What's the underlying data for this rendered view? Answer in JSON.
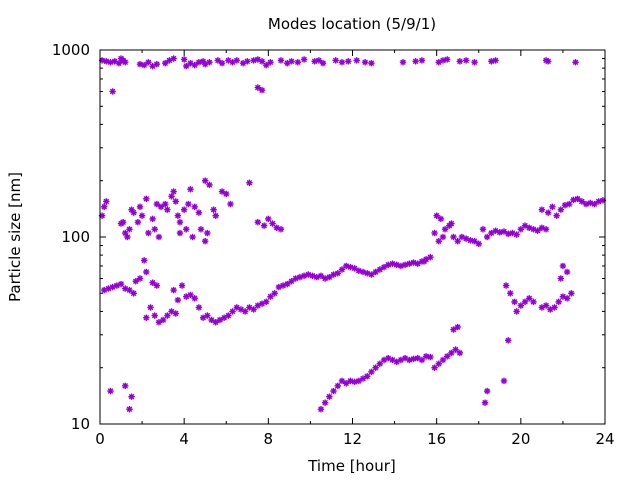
{
  "chart_data": {
    "type": "scatter",
    "title": "Modes location (5/9/1)",
    "xlabel": "Time [hour]",
    "ylabel": "Particle size [nm]",
    "xlim": [
      0,
      24
    ],
    "ylim": [
      10,
      1000
    ],
    "yscale": "log",
    "grid": false,
    "legend": "none",
    "x_ticks": [
      0,
      4,
      8,
      12,
      16,
      20,
      24
    ],
    "x_tick_labels": [
      "0",
      "4",
      "8",
      "12",
      "16",
      "20",
      "24"
    ],
    "y_ticks": [
      10,
      100,
      1000
    ],
    "y_tick_labels": [
      "10",
      "100",
      "1000"
    ],
    "marker_color": "#9400d3",
    "series": [
      {
        "values": [
          [
            0.1,
            880
          ],
          [
            0.3,
            870
          ],
          [
            0.5,
            860
          ],
          [
            0.7,
            870
          ],
          [
            0.9,
            850
          ],
          [
            1.1,
            880
          ],
          [
            1.2,
            860
          ],
          [
            1.0,
            900
          ],
          [
            0.6,
            600
          ],
          [
            1.9,
            840
          ],
          [
            2.1,
            830
          ],
          [
            2.3,
            860
          ],
          [
            2.5,
            820
          ],
          [
            2.7,
            840
          ],
          [
            3.1,
            850
          ],
          [
            3.3,
            880
          ],
          [
            3.5,
            900
          ],
          [
            4.0,
            890
          ],
          [
            4.1,
            820
          ],
          [
            4.3,
            850
          ],
          [
            4.5,
            830
          ],
          [
            4.7,
            860
          ],
          [
            4.9,
            870
          ],
          [
            5.0,
            840
          ],
          [
            5.2,
            860
          ],
          [
            5.6,
            880
          ],
          [
            5.8,
            850
          ],
          [
            6.1,
            880
          ],
          [
            6.3,
            860
          ],
          [
            6.5,
            880
          ],
          [
            6.8,
            850
          ],
          [
            7.0,
            870
          ],
          [
            7.3,
            880
          ],
          [
            7.5,
            890
          ],
          [
            7.7,
            870
          ],
          [
            7.9,
            830
          ],
          [
            7.5,
            630
          ],
          [
            7.7,
            610
          ],
          [
            8.1,
            860
          ],
          [
            8.6,
            880
          ],
          [
            8.9,
            850
          ],
          [
            9.1,
            870
          ],
          [
            9.4,
            860
          ],
          [
            9.7,
            890
          ],
          [
            10.2,
            870
          ],
          [
            10.4,
            880
          ],
          [
            10.6,
            850
          ],
          [
            11.2,
            880
          ],
          [
            11.5,
            860
          ],
          [
            11.8,
            870
          ],
          [
            12.2,
            880
          ],
          [
            12.6,
            860
          ],
          [
            12.9,
            850
          ],
          [
            14.4,
            860
          ],
          [
            15.0,
            870
          ],
          [
            15.3,
            880
          ],
          [
            16.1,
            860
          ],
          [
            16.3,
            880
          ],
          [
            16.5,
            890
          ],
          [
            17.1,
            870
          ],
          [
            17.4,
            880
          ],
          [
            17.8,
            860
          ],
          [
            18.6,
            870
          ],
          [
            18.8,
            880
          ],
          [
            21.2,
            880
          ],
          [
            21.3,
            870
          ],
          [
            22.6,
            860
          ]
        ]
      },
      {
        "values": [
          [
            0.1,
            130
          ],
          [
            0.2,
            145
          ],
          [
            0.3,
            155
          ],
          [
            1.0,
            118
          ],
          [
            1.1,
            120
          ],
          [
            1.2,
            105
          ],
          [
            1.3,
            100
          ],
          [
            1.4,
            110
          ],
          [
            1.5,
            140
          ],
          [
            1.6,
            135
          ],
          [
            1.8,
            120
          ],
          [
            1.9,
            145
          ],
          [
            2.0,
            130
          ],
          [
            2.2,
            160
          ],
          [
            2.5,
            125
          ],
          [
            2.7,
            150
          ],
          [
            2.9,
            145
          ],
          [
            3.1,
            150
          ],
          [
            3.2,
            140
          ],
          [
            3.4,
            165
          ],
          [
            3.5,
            175
          ],
          [
            3.6,
            155
          ],
          [
            3.7,
            130
          ],
          [
            3.8,
            120
          ],
          [
            4.0,
            140
          ],
          [
            4.1,
            110
          ],
          [
            4.2,
            150
          ],
          [
            4.3,
            180
          ],
          [
            4.5,
            145
          ],
          [
            4.7,
            135
          ],
          [
            4.8,
            110
          ],
          [
            5.0,
            200
          ],
          [
            5.1,
            105
          ],
          [
            5.2,
            190
          ],
          [
            5.4,
            140
          ],
          [
            5.5,
            130
          ],
          [
            5.8,
            175
          ],
          [
            6.0,
            170
          ],
          [
            6.2,
            150
          ],
          [
            7.1,
            195
          ],
          [
            7.5,
            120
          ],
          [
            7.8,
            115
          ],
          [
            8.0,
            125
          ],
          [
            8.2,
            118
          ],
          [
            8.4,
            112
          ],
          [
            8.6,
            110
          ],
          [
            2.6,
            110
          ],
          [
            2.8,
            100
          ],
          [
            3.8,
            105
          ],
          [
            4.4,
            100
          ],
          [
            5.0,
            95
          ],
          [
            2.3,
            105
          ],
          [
            0.2,
            52
          ],
          [
            0.4,
            53
          ],
          [
            0.6,
            54
          ],
          [
            0.8,
            55
          ],
          [
            1.0,
            56
          ],
          [
            1.2,
            53
          ],
          [
            1.4,
            52
          ],
          [
            1.6,
            50
          ],
          [
            2.1,
            75
          ],
          [
            2.2,
            65
          ],
          [
            2.5,
            57
          ],
          [
            2.7,
            55
          ],
          [
            1.7,
            58
          ],
          [
            1.9,
            60
          ],
          [
            2.2,
            37
          ],
          [
            2.4,
            42
          ],
          [
            2.6,
            38
          ],
          [
            2.8,
            35
          ],
          [
            3.0,
            36
          ],
          [
            3.2,
            38
          ],
          [
            3.4,
            40
          ],
          [
            3.6,
            39
          ],
          [
            3.5,
            52
          ],
          [
            3.7,
            46
          ],
          [
            3.9,
            55
          ],
          [
            4.1,
            48
          ],
          [
            4.3,
            49
          ],
          [
            4.5,
            47
          ],
          [
            4.7,
            42
          ],
          [
            4.9,
            37
          ],
          [
            5.1,
            38
          ],
          [
            5.3,
            36
          ],
          [
            5.5,
            35
          ],
          [
            5.7,
            36
          ],
          [
            5.9,
            37
          ],
          [
            6.1,
            38
          ],
          [
            6.3,
            40
          ],
          [
            6.5,
            42
          ],
          [
            6.7,
            41
          ],
          [
            6.9,
            40
          ],
          [
            7.1,
            42
          ],
          [
            7.3,
            41
          ],
          [
            7.5,
            43
          ],
          [
            7.7,
            44
          ],
          [
            7.9,
            45
          ],
          [
            8.1,
            48
          ],
          [
            8.3,
            50
          ],
          [
            8.5,
            54
          ],
          [
            8.7,
            55
          ],
          [
            8.9,
            56
          ],
          [
            9.1,
            58
          ],
          [
            9.3,
            60
          ],
          [
            9.5,
            61
          ],
          [
            9.7,
            62
          ],
          [
            9.9,
            63
          ],
          [
            10.1,
            62
          ],
          [
            10.3,
            61
          ],
          [
            10.5,
            62
          ],
          [
            10.7,
            60
          ],
          [
            10.9,
            61
          ],
          [
            11.1,
            63
          ],
          [
            11.3,
            64
          ],
          [
            11.5,
            67
          ],
          [
            11.7,
            70
          ],
          [
            11.9,
            69
          ],
          [
            12.1,
            68
          ],
          [
            12.3,
            66
          ],
          [
            12.5,
            65
          ],
          [
            12.7,
            64
          ],
          [
            12.9,
            63
          ],
          [
            13.1,
            65
          ],
          [
            13.3,
            67
          ],
          [
            13.5,
            69
          ],
          [
            13.7,
            71
          ],
          [
            13.9,
            72
          ],
          [
            14.1,
            71
          ],
          [
            14.3,
            70
          ],
          [
            14.5,
            71
          ],
          [
            14.7,
            72
          ],
          [
            14.9,
            73
          ],
          [
            15.1,
            72
          ],
          [
            15.3,
            74
          ],
          [
            15.5,
            76
          ],
          [
            15.7,
            78
          ],
          [
            15.4,
            74
          ],
          [
            15.9,
            105
          ],
          [
            16.0,
            130
          ],
          [
            16.2,
            125
          ],
          [
            16.4,
            110
          ],
          [
            16.6,
            115
          ],
          [
            16.8,
            100
          ],
          [
            17.0,
            95
          ],
          [
            16.1,
            95
          ],
          [
            16.3,
            100
          ],
          [
            16.7,
            118
          ],
          [
            17.2,
            100
          ],
          [
            17.4,
            98
          ],
          [
            17.6,
            96
          ],
          [
            17.8,
            95
          ],
          [
            18.0,
            92
          ],
          [
            18.2,
            110
          ],
          [
            18.4,
            100
          ],
          [
            18.6,
            105
          ],
          [
            18.8,
            108
          ],
          [
            19.0,
            106
          ],
          [
            19.2,
            107
          ],
          [
            19.4,
            104
          ],
          [
            19.6,
            105
          ],
          [
            19.8,
            103
          ],
          [
            20.0,
            110
          ],
          [
            20.2,
            115
          ],
          [
            20.4,
            112
          ],
          [
            20.6,
            110
          ],
          [
            20.8,
            108
          ],
          [
            21.0,
            112
          ],
          [
            21.2,
            110
          ],
          [
            21.0,
            140
          ],
          [
            21.3,
            135
          ],
          [
            21.5,
            145
          ],
          [
            21.7,
            130
          ],
          [
            21.9,
            140
          ],
          [
            22.1,
            148
          ],
          [
            22.3,
            150
          ],
          [
            22.5,
            158
          ],
          [
            22.7,
            160
          ],
          [
            22.9,
            155
          ],
          [
            23.1,
            150
          ],
          [
            23.3,
            152
          ],
          [
            23.5,
            150
          ],
          [
            23.7,
            155
          ],
          [
            23.9,
            157
          ],
          [
            19.3,
            55
          ],
          [
            19.5,
            50
          ],
          [
            19.7,
            45
          ],
          [
            19.8,
            40
          ],
          [
            20.0,
            43
          ],
          [
            20.2,
            45
          ],
          [
            20.4,
            47
          ],
          [
            20.6,
            45
          ],
          [
            21.0,
            42
          ],
          [
            21.2,
            43
          ],
          [
            21.4,
            41
          ],
          [
            21.6,
            42
          ],
          [
            21.8,
            45
          ],
          [
            22.0,
            48
          ],
          [
            22.2,
            47
          ],
          [
            22.4,
            50
          ],
          [
            21.9,
            60
          ],
          [
            22.0,
            70
          ],
          [
            22.2,
            65
          ],
          [
            19.4,
            28
          ],
          [
            19.2,
            17
          ]
        ]
      },
      {
        "values": [
          [
            0.5,
            15
          ],
          [
            1.2,
            16
          ],
          [
            1.5,
            14
          ],
          [
            1.4,
            12
          ],
          [
            10.5,
            12
          ],
          [
            10.7,
            13
          ],
          [
            10.9,
            14
          ],
          [
            11.1,
            15
          ],
          [
            11.3,
            16
          ],
          [
            11.5,
            17
          ],
          [
            11.7,
            16.5
          ],
          [
            11.9,
            17
          ],
          [
            12.1,
            16.8
          ],
          [
            12.3,
            17
          ],
          [
            12.5,
            17.5
          ],
          [
            12.7,
            18
          ],
          [
            12.9,
            19
          ],
          [
            13.1,
            20
          ],
          [
            13.3,
            21
          ],
          [
            13.5,
            22
          ],
          [
            13.7,
            22.5
          ],
          [
            13.9,
            22
          ],
          [
            14.1,
            21.5
          ],
          [
            14.3,
            22
          ],
          [
            14.5,
            22.5
          ],
          [
            14.7,
            22
          ],
          [
            14.9,
            22.3
          ],
          [
            15.1,
            22.5
          ],
          [
            15.3,
            22
          ],
          [
            15.5,
            23
          ],
          [
            15.7,
            22.8
          ],
          [
            15.9,
            20
          ],
          [
            16.1,
            21
          ],
          [
            16.3,
            22
          ],
          [
            16.5,
            23
          ],
          [
            16.7,
            24
          ],
          [
            16.9,
            25
          ],
          [
            17.1,
            24
          ],
          [
            16.8,
            32
          ],
          [
            17.0,
            33
          ],
          [
            18.4,
            15
          ],
          [
            18.3,
            13
          ]
        ]
      }
    ]
  }
}
